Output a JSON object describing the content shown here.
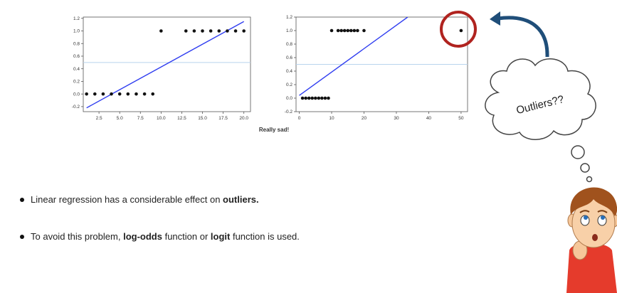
{
  "chart_data": [
    {
      "type": "scatter",
      "title": "",
      "xlim": [
        0.6,
        20.8
      ],
      "ylim": [
        -0.28,
        1.22
      ],
      "x_ticks": [
        2.5,
        5.0,
        7.5,
        10.0,
        12.5,
        15.0,
        17.5,
        20.0
      ],
      "x_tick_labels": [
        "2.5",
        "5.0",
        "7.5",
        "10.0",
        "12.5",
        "15.0",
        "17.5",
        "20.0"
      ],
      "y_ticks": [
        -0.2,
        0.0,
        0.2,
        0.4,
        0.6,
        0.8,
        1.0,
        1.2
      ],
      "y_tick_labels": [
        "-0.2",
        "0.0",
        "0.2",
        "0.4",
        "0.6",
        "0.8",
        "1.0",
        "1.2"
      ],
      "points": [
        [
          1,
          0
        ],
        [
          2,
          0
        ],
        [
          3,
          0
        ],
        [
          4,
          0
        ],
        [
          5,
          0
        ],
        [
          6,
          0
        ],
        [
          7,
          0
        ],
        [
          8,
          0
        ],
        [
          9,
          0
        ],
        [
          10,
          1
        ],
        [
          13,
          1
        ],
        [
          14,
          1
        ],
        [
          15,
          1
        ],
        [
          16,
          1
        ],
        [
          17,
          1
        ],
        [
          18,
          1
        ],
        [
          19,
          1
        ],
        [
          20,
          1
        ]
      ],
      "fit_line": [
        [
          1,
          -0.22
        ],
        [
          20,
          1.15
        ]
      ],
      "threshold": 0.5
    },
    {
      "type": "scatter",
      "title": "",
      "xlim": [
        -1,
        52
      ],
      "ylim": [
        -0.2,
        1.2
      ],
      "x_ticks": [
        0,
        10,
        20,
        30,
        40,
        50
      ],
      "x_tick_labels": [
        "0",
        "10",
        "20",
        "30",
        "40",
        "50"
      ],
      "y_ticks": [
        -0.2,
        0.0,
        0.2,
        0.4,
        0.6,
        0.8,
        1.0,
        1.2
      ],
      "y_tick_labels": [
        "-0.2",
        "0.0",
        "0.2",
        "0.4",
        "0.6",
        "0.8",
        "1.0",
        "1.2"
      ],
      "points": [
        [
          1,
          0
        ],
        [
          2,
          0
        ],
        [
          3,
          0
        ],
        [
          4,
          0
        ],
        [
          5,
          0
        ],
        [
          6,
          0
        ],
        [
          7,
          0
        ],
        [
          8,
          0
        ],
        [
          9,
          0
        ],
        [
          10,
          1
        ],
        [
          12,
          1
        ],
        [
          13,
          1
        ],
        [
          14,
          1
        ],
        [
          15,
          1
        ],
        [
          16,
          1
        ],
        [
          17,
          1
        ],
        [
          18,
          1
        ],
        [
          20,
          1
        ],
        [
          50,
          1
        ]
      ],
      "fit_line": [
        [
          0,
          0.04
        ],
        [
          33.5,
          1.2
        ]
      ],
      "threshold": 0.5,
      "highlight_point": [
        50,
        1
      ]
    }
  ],
  "caption": "Really sad!",
  "cloud_text": "Outliers??",
  "bullets": [
    {
      "pre": "Linear regression has a considerable effect on ",
      "bold1": "outliers.",
      "mid": "",
      "bold2": "",
      "post": ""
    },
    {
      "pre": "To avoid this problem, ",
      "bold1": "log-odds",
      "mid": " function or ",
      "bold2": "logit",
      "post": " function is used."
    }
  ],
  "colors": {
    "fit_line": "#2f3df0",
    "threshold": "#b8d4ee",
    "points": "#111111",
    "highlight": "#b0231f",
    "arrow": "#1f4e79"
  }
}
